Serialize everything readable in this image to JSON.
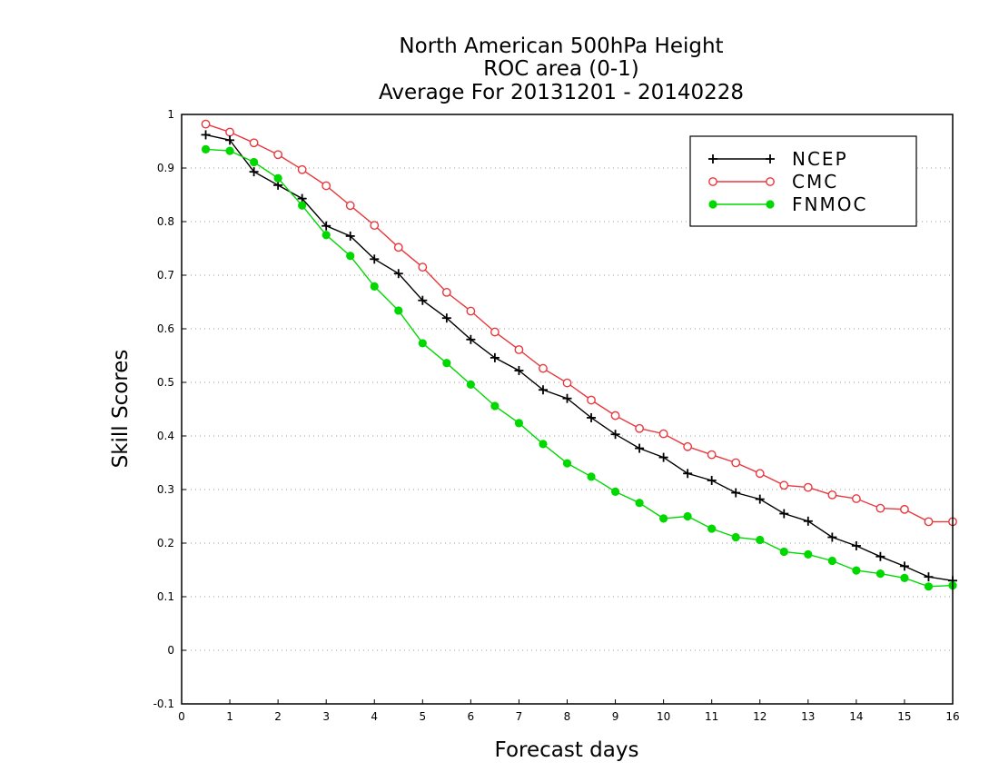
{
  "chart_data": {
    "type": "line",
    "title": [
      "North American 500hPa Height",
      "ROC area (0-1)",
      "Average For 20131201 - 20140228"
    ],
    "xlabel": "Forecast days",
    "ylabel": "Skill Scores",
    "xlim": [
      0,
      16
    ],
    "ylim": [
      -0.1,
      1
    ],
    "xticks": [
      "0",
      "1",
      "2",
      "3",
      "4",
      "5",
      "6",
      "7",
      "8",
      "9",
      "10",
      "11",
      "12",
      "13",
      "14",
      "15",
      "16"
    ],
    "yticks": [
      "-0.1",
      "0",
      "0.1",
      "0.2",
      "0.3",
      "0.4",
      "0.5",
      "0.6",
      "0.7",
      "0.8",
      "0.9",
      "1"
    ],
    "grid": "horizontal dotted",
    "legend_position": "top-right",
    "x": [
      0.5,
      1,
      1.5,
      2,
      2.5,
      3,
      3.5,
      4,
      4.5,
      5,
      5.5,
      6,
      6.5,
      7,
      7.5,
      8,
      8.5,
      9,
      9.5,
      10,
      10.5,
      11,
      11.5,
      12,
      12.5,
      13,
      13.5,
      14,
      14.5,
      15,
      15.5,
      16
    ],
    "series": [
      {
        "name": "NCEP",
        "color": "#000000",
        "marker": "plus",
        "values": [
          0.962,
          0.952,
          0.893,
          0.868,
          0.843,
          0.792,
          0.773,
          0.73,
          0.703,
          0.653,
          0.62,
          0.58,
          0.546,
          0.522,
          0.486,
          0.47,
          0.434,
          0.403,
          0.377,
          0.36,
          0.33,
          0.317,
          0.294,
          0.282,
          0.255,
          0.241,
          0.211,
          0.195,
          0.175,
          0.157,
          0.137,
          0.13
        ]
      },
      {
        "name": "CMC",
        "color": "#e8383d",
        "marker": "open-circle",
        "values": [
          0.982,
          0.967,
          0.947,
          0.925,
          0.897,
          0.867,
          0.83,
          0.793,
          0.752,
          0.715,
          0.668,
          0.633,
          0.594,
          0.561,
          0.526,
          0.499,
          0.467,
          0.438,
          0.414,
          0.404,
          0.38,
          0.365,
          0.35,
          0.33,
          0.308,
          0.304,
          0.29,
          0.283,
          0.265,
          0.263,
          0.24,
          0.24
        ]
      },
      {
        "name": "FNMOC",
        "color": "#00d800",
        "marker": "filled-circle",
        "values": [
          0.935,
          0.932,
          0.911,
          0.881,
          0.83,
          0.775,
          0.736,
          0.679,
          0.634,
          0.573,
          0.536,
          0.496,
          0.456,
          0.424,
          0.385,
          0.349,
          0.324,
          0.296,
          0.275,
          0.246,
          0.25,
          0.227,
          0.211,
          0.206,
          0.184,
          0.179,
          0.167,
          0.149,
          0.143,
          0.135,
          0.119,
          0.121
        ]
      }
    ]
  }
}
